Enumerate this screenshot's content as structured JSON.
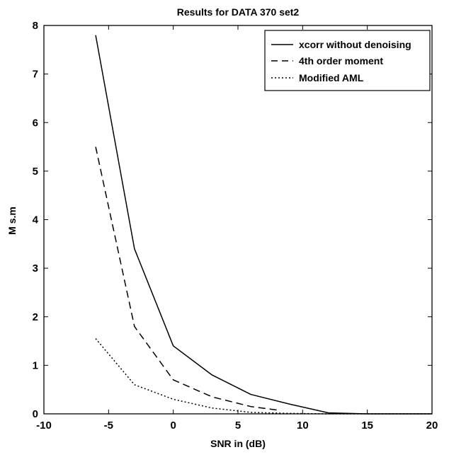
{
  "chart_data": {
    "type": "line",
    "title": "Results for DATA 370 set2",
    "xlabel": "SNR in (dB)",
    "ylabel": "M s.m",
    "xlim": [
      -10,
      20
    ],
    "ylim": [
      0,
      8
    ],
    "xticks": [
      "-10",
      "-5",
      "0",
      "5",
      "10",
      "15",
      "20"
    ],
    "yticks": [
      "0",
      "1",
      "2",
      "3",
      "4",
      "5",
      "6",
      "7",
      "8"
    ],
    "grid": false,
    "legend_position": "top-right",
    "series": [
      {
        "name": "xcorr without denoising",
        "color": "#000000",
        "line_style": "solid",
        "x": [
          -6,
          -3,
          0,
          3,
          6,
          9,
          12,
          15,
          18,
          20
        ],
        "y": [
          7.8,
          3.4,
          1.4,
          0.8,
          0.4,
          0.2,
          0.02,
          0,
          0,
          0
        ]
      },
      {
        "name": "4th order moment",
        "color": "#000000",
        "line_style": "dashed",
        "x": [
          -6,
          -3,
          0,
          3,
          6,
          8
        ],
        "y": [
          5.5,
          1.8,
          0.7,
          0.35,
          0.15,
          0.08
        ]
      },
      {
        "name": "Modified AML",
        "color": "#000000",
        "line_style": "dotted",
        "x": [
          -6,
          -3,
          0,
          3,
          6,
          9,
          12,
          15,
          18,
          20
        ],
        "y": [
          1.55,
          0.6,
          0.3,
          0.12,
          0.03,
          0.01,
          0,
          0,
          0,
          0
        ]
      }
    ]
  }
}
